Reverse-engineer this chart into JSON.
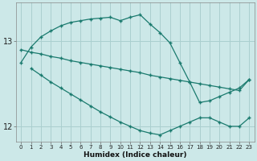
{
  "xlabel": "Humidex (Indice chaleur)",
  "bg_color": "#cce8e8",
  "grid_color": "#aacfcf",
  "line_color": "#1a7a6e",
  "xlim": [
    -0.5,
    23.5
  ],
  "ylim": [
    11.82,
    13.45
  ],
  "yticks": [
    12,
    13
  ],
  "xticks": [
    0,
    1,
    2,
    3,
    4,
    5,
    6,
    7,
    8,
    9,
    10,
    11,
    12,
    13,
    14,
    15,
    16,
    17,
    18,
    19,
    20,
    21,
    22,
    23
  ],
  "series1_x": [
    0,
    1,
    2,
    3,
    4,
    5,
    6,
    7,
    8,
    9,
    10,
    11,
    12,
    13,
    14,
    15,
    16,
    17,
    18,
    19,
    20,
    21,
    22,
    23
  ],
  "series1_y": [
    12.75,
    12.93,
    13.05,
    13.12,
    13.18,
    13.22,
    13.24,
    13.26,
    13.27,
    13.28,
    13.24,
    13.28,
    13.31,
    13.2,
    13.1,
    12.98,
    12.75,
    12.52,
    12.28,
    12.3,
    12.35,
    12.4,
    12.45,
    12.55
  ],
  "series2_x": [
    0,
    1,
    2,
    3,
    4,
    5,
    6,
    7,
    8,
    9,
    10,
    11,
    12,
    13,
    14,
    15,
    16,
    17,
    18,
    19,
    20,
    21,
    22,
    23
  ],
  "series2_y": [
    12.9,
    12.87,
    12.85,
    12.82,
    12.8,
    12.77,
    12.75,
    12.73,
    12.71,
    12.69,
    12.67,
    12.65,
    12.63,
    12.6,
    12.58,
    12.56,
    12.54,
    12.52,
    12.5,
    12.48,
    12.46,
    12.44,
    12.42,
    12.55
  ],
  "series3_x": [
    1,
    2,
    3,
    4,
    5,
    6,
    7,
    8,
    9,
    10,
    11,
    12,
    13,
    14,
    15,
    16,
    17,
    18,
    19,
    20,
    21,
    22,
    23
  ],
  "series3_y": [
    12.68,
    12.6,
    12.52,
    12.45,
    12.38,
    12.31,
    12.24,
    12.17,
    12.11,
    12.05,
    12.0,
    11.95,
    11.92,
    11.9,
    11.95,
    12.0,
    12.05,
    12.1,
    12.1,
    12.05,
    12.0,
    12.0,
    12.1
  ]
}
